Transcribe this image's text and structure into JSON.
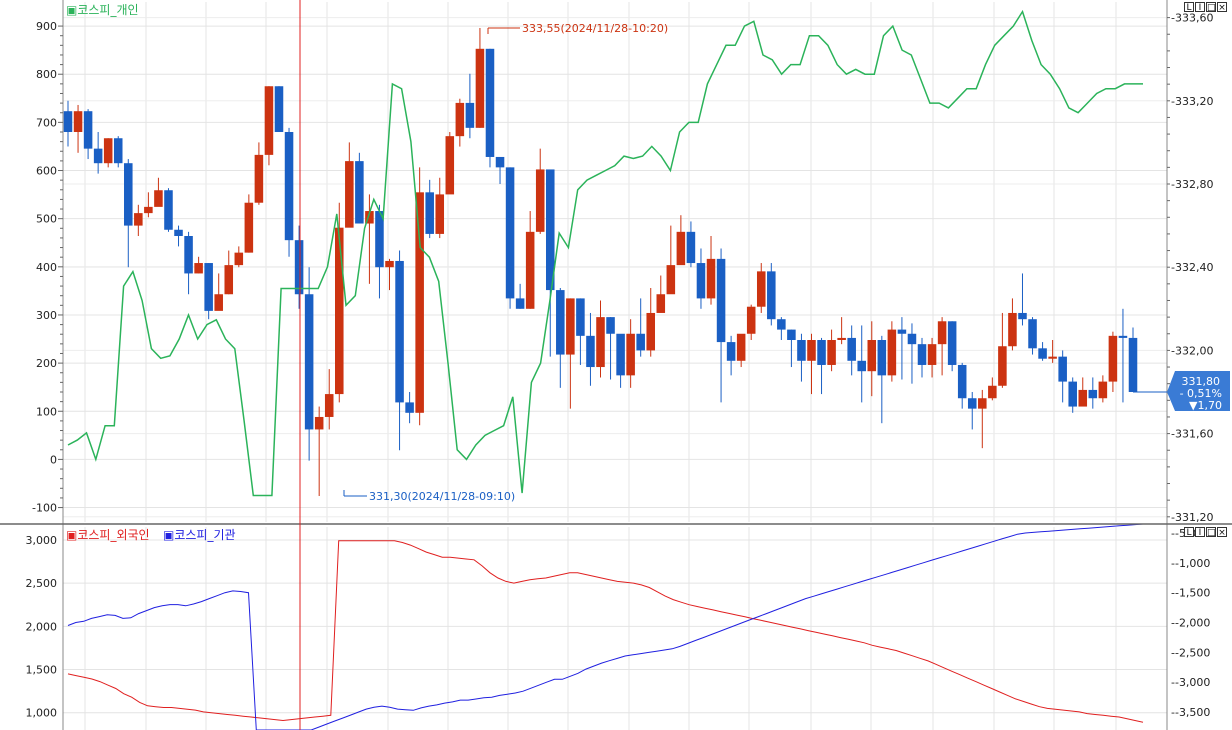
{
  "chart_data": [
    {
      "type": "candlestick",
      "legend": [
        "코스피_개인"
      ],
      "legend_color": "#2bb35a",
      "annotations": {
        "high": "333,55(2024/11/28-10:20)",
        "low": "331,30(2024/11/28-09:10)"
      },
      "price_tag": {
        "price": "331,80",
        "pct": "- 0,51%",
        "chg": "▼1,70"
      },
      "left_axis": {
        "min": -130,
        "max": 950,
        "ticks": [
          900,
          800,
          700,
          600,
          500,
          400,
          300,
          200,
          100,
          0,
          -100
        ],
        "tick_labels": [
          "900",
          "800",
          "700",
          "600",
          "500",
          "400",
          "300",
          "200",
          "100",
          "0",
          "-100"
        ]
      },
      "right_axis": {
        "min": 331.175,
        "max": 333.675,
        "ticks": [
          333.6,
          333.2,
          332.8,
          332.4,
          332.0,
          331.6,
          331.2
        ],
        "tick_labels": [
          "333,60",
          "333,20",
          "332,80",
          "332,40",
          "332,00",
          "331,60",
          "331,20"
        ]
      },
      "up_color": "#cc3311",
      "down_color": "#1a5fc4",
      "candles": [
        [
          333.15,
          333.05,
          333.2,
          332.98
        ],
        [
          333.05,
          333.15,
          333.18,
          332.95
        ],
        [
          333.15,
          332.97,
          333.16,
          332.92
        ],
        [
          332.97,
          332.9,
          333.05,
          332.85
        ],
        [
          332.9,
          333.02,
          333.02,
          332.88
        ],
        [
          333.02,
          332.9,
          333.03,
          332.88
        ],
        [
          332.9,
          332.6,
          332.92,
          332.4
        ],
        [
          332.6,
          332.66,
          332.7,
          332.55
        ],
        [
          332.66,
          332.69,
          332.76,
          332.64
        ],
        [
          332.69,
          332.77,
          332.83,
          332.7
        ],
        [
          332.77,
          332.58,
          332.78,
          332.57
        ],
        [
          332.58,
          332.55,
          332.6,
          332.5
        ],
        [
          332.55,
          332.37,
          332.57,
          332.27
        ],
        [
          332.37,
          332.42,
          332.45,
          332.37
        ],
        [
          332.42,
          332.19,
          332.42,
          332.15
        ],
        [
          332.19,
          332.27,
          332.37,
          332.26
        ],
        [
          332.27,
          332.41,
          332.48,
          332.27
        ],
        [
          332.41,
          332.47,
          332.5,
          332.4
        ],
        [
          332.47,
          332.71,
          332.75,
          332.47
        ],
        [
          332.71,
          332.94,
          333.0,
          332.7
        ],
        [
          332.94,
          333.27,
          333.27,
          332.89
        ],
        [
          333.27,
          333.05,
          333.27,
          333.05
        ],
        [
          333.05,
          332.53,
          333.07,
          332.45
        ],
        [
          332.53,
          332.27,
          332.6,
          332.2
        ],
        [
          332.27,
          331.62,
          332.4,
          331.47
        ],
        [
          331.62,
          331.68,
          331.73,
          331.3
        ],
        [
          331.68,
          331.79,
          331.91,
          331.62
        ],
        [
          331.79,
          332.59,
          332.71,
          331.75
        ],
        [
          332.59,
          332.91,
          333.0,
          332.6
        ],
        [
          332.91,
          332.61,
          332.95,
          332.61
        ],
        [
          332.61,
          332.67,
          332.75,
          332.32
        ],
        [
          332.67,
          332.4,
          332.7,
          332.25
        ],
        [
          332.4,
          332.43,
          332.44,
          332.29
        ],
        [
          332.43,
          331.75,
          332.48,
          331.52
        ],
        [
          331.75,
          331.7,
          331.8,
          331.65
        ],
        [
          331.7,
          332.76,
          332.88,
          331.64
        ],
        [
          332.76,
          332.56,
          332.82,
          332.54
        ],
        [
          332.56,
          332.75,
          332.83,
          332.54
        ],
        [
          332.75,
          333.03,
          333.05,
          332.76
        ],
        [
          333.03,
          333.19,
          333.21,
          332.98
        ],
        [
          333.19,
          333.07,
          333.33,
          333.02
        ],
        [
          333.07,
          333.45,
          333.55,
          333.07
        ],
        [
          333.45,
          332.93,
          333.45,
          332.88
        ],
        [
          332.93,
          332.88,
          332.92,
          332.8
        ],
        [
          332.88,
          332.25,
          332.88,
          332.2
        ],
        [
          332.25,
          332.2,
          332.32,
          332.2
        ],
        [
          332.2,
          332.57,
          332.67,
          332.2
        ],
        [
          332.57,
          332.87,
          332.97,
          332.56
        ],
        [
          332.87,
          332.29,
          332.87,
          331.97
        ],
        [
          332.29,
          331.98,
          332.3,
          331.82
        ],
        [
          331.98,
          332.25,
          332.25,
          331.72
        ],
        [
          332.25,
          332.07,
          332.25,
          331.93
        ],
        [
          332.07,
          331.92,
          332.18,
          331.83
        ],
        [
          331.92,
          332.16,
          332.24,
          331.87
        ],
        [
          332.16,
          332.08,
          332.16,
          331.86
        ],
        [
          332.08,
          331.88,
          332.03,
          331.82
        ],
        [
          331.88,
          332.08,
          332.15,
          331.82
        ],
        [
          332.08,
          332.0,
          332.25,
          331.97
        ],
        [
          332.0,
          332.18,
          332.3,
          331.97
        ],
        [
          332.18,
          332.27,
          332.36,
          332.2
        ],
        [
          332.27,
          332.41,
          332.6,
          332.36
        ],
        [
          332.41,
          332.57,
          332.65,
          332.45
        ],
        [
          332.57,
          332.42,
          332.62,
          332.4
        ],
        [
          332.42,
          332.25,
          332.49,
          332.2
        ],
        [
          332.25,
          332.44,
          332.55,
          332.22
        ],
        [
          332.44,
          332.04,
          332.49,
          331.75
        ],
        [
          332.04,
          331.95,
          332.07,
          331.88
        ],
        [
          331.95,
          332.08,
          332.07,
          331.92
        ],
        [
          332.08,
          332.21,
          332.22,
          332.05
        ],
        [
          332.21,
          332.38,
          332.42,
          332.18
        ],
        [
          332.38,
          332.15,
          332.42,
          332.12
        ],
        [
          332.15,
          332.1,
          332.16,
          332.05
        ],
        [
          332.1,
          332.05,
          332.1,
          331.92
        ],
        [
          332.05,
          331.95,
          332.08,
          331.85
        ],
        [
          331.95,
          332.05,
          332.08,
          331.79
        ],
        [
          332.05,
          331.93,
          332.06,
          331.79
        ],
        [
          331.93,
          332.05,
          332.1,
          331.9
        ],
        [
          332.05,
          332.06,
          332.16,
          332.03
        ],
        [
          332.06,
          331.95,
          332.12,
          331.88
        ],
        [
          331.95,
          331.9,
          332.12,
          331.75
        ],
        [
          331.9,
          332.05,
          332.14,
          331.78
        ],
        [
          332.05,
          331.88,
          332.07,
          331.65
        ],
        [
          331.88,
          332.1,
          332.14,
          331.85
        ],
        [
          332.1,
          332.08,
          332.16,
          331.86
        ],
        [
          332.08,
          332.03,
          332.13,
          331.84
        ],
        [
          332.03,
          331.93,
          332.06,
          331.87
        ],
        [
          331.93,
          332.03,
          332.06,
          331.87
        ],
        [
          332.03,
          332.14,
          332.16,
          331.88
        ],
        [
          332.14,
          331.93,
          332.14,
          331.9
        ],
        [
          331.93,
          331.77,
          331.94,
          331.72
        ],
        [
          331.77,
          331.72,
          331.8,
          331.62
        ],
        [
          331.72,
          331.77,
          331.81,
          331.53
        ],
        [
          331.77,
          331.83,
          331.87,
          331.76
        ],
        [
          331.83,
          332.02,
          332.18,
          331.82
        ],
        [
          332.02,
          332.18,
          332.25,
          332.0
        ],
        [
          332.18,
          332.15,
          332.37,
          332.12
        ],
        [
          332.15,
          332.01,
          332.16,
          331.98
        ],
        [
          332.01,
          331.96,
          332.04,
          331.95
        ],
        [
          331.96,
          331.97,
          332.05,
          331.94
        ],
        [
          331.97,
          331.85,
          332.0,
          331.75
        ],
        [
          331.85,
          331.73,
          331.87,
          331.7
        ],
        [
          331.73,
          331.81,
          331.87,
          331.74
        ],
        [
          331.81,
          331.77,
          331.87,
          331.72
        ],
        [
          331.77,
          331.85,
          331.88,
          331.75
        ],
        [
          331.85,
          332.07,
          332.09,
          331.8
        ],
        [
          332.07,
          332.06,
          332.2,
          331.75
        ],
        [
          332.06,
          331.8,
          332.11,
          331.8
        ]
      ],
      "series": [
        {
          "name": "코스피_개인",
          "values": [
            30,
            40,
            55,
            0,
            70,
            70,
            360,
            390,
            330,
            230,
            210,
            215,
            250,
            300,
            250,
            280,
            290,
            250,
            230,
            80,
            -75,
            -75,
            -75,
            355,
            355,
            355,
            355,
            355,
            400,
            510,
            320,
            340,
            480,
            540,
            500,
            780,
            770,
            660,
            440,
            420,
            370,
            200,
            20,
            0,
            30,
            50,
            60,
            70,
            130,
            -70,
            160,
            200,
            330,
            470,
            440,
            560,
            580,
            590,
            600,
            610,
            630,
            625,
            630,
            650,
            630,
            600,
            680,
            700,
            700,
            780,
            820,
            860,
            860,
            900,
            910,
            840,
            830,
            800,
            820,
            820,
            880,
            880,
            860,
            820,
            800,
            810,
            800,
            800,
            880,
            900,
            850,
            840,
            790,
            740,
            740,
            730,
            750,
            770,
            770,
            820,
            860,
            880,
            900,
            930,
            870,
            820,
            800,
            770,
            730,
            720,
            740,
            760,
            770,
            770,
            780,
            780,
            780
          ],
          "x_start": 1,
          "x_end": 106
        },
        {
          "name": "",
          "values": []
        }
      ]
    },
    {
      "type": "line",
      "legend": [
        "코스피_외국인",
        "코스피_기관"
      ],
      "legend_colors": [
        "#e02020",
        "#2020e0"
      ],
      "left_axis": {
        "min": 800,
        "max": 3150,
        "ticks": [
          3000,
          2500,
          2000,
          1500,
          1000
        ],
        "tick_labels": [
          "3,000",
          "2,500",
          "2,000",
          "1,500",
          "1,000"
        ]
      },
      "right_axis": {
        "min": -3800,
        "max": -400,
        "ticks": [
          -500,
          -1000,
          -1500,
          -2000,
          -2500,
          -3000,
          -3500
        ],
        "tick_labels": [
          "-500",
          "-1,000",
          "-1,500",
          "-2,000",
          "-2,500",
          "-3,000",
          "-3,500"
        ]
      },
      "series": [
        {
          "name": "코스피_외국인",
          "axis": "left",
          "values": [
            1450,
            1430,
            1410,
            1390,
            1360,
            1320,
            1280,
            1220,
            1180,
            1120,
            1080,
            1070,
            1060,
            1060,
            1050,
            1040,
            1030,
            1010,
            1000,
            990,
            980,
            970,
            960,
            950,
            940,
            930,
            920,
            910,
            920,
            930,
            940,
            950,
            960,
            970,
            2990,
            2990,
            2990,
            2990,
            2990,
            2990,
            2990,
            2990,
            2970,
            2940,
            2900,
            2860,
            2830,
            2800,
            2800,
            2790,
            2780,
            2770,
            2700,
            2620,
            2560,
            2520,
            2500,
            2520,
            2540,
            2550,
            2560,
            2580,
            2600,
            2620,
            2620,
            2600,
            2580,
            2560,
            2540,
            2520,
            2510,
            2500,
            2480,
            2450,
            2400,
            2350,
            2310,
            2280,
            2250,
            2230,
            2210,
            2190,
            2170,
            2150,
            2130,
            2110,
            2090,
            2070,
            2050,
            2030,
            2010,
            1990,
            1970,
            1950,
            1930,
            1910,
            1890,
            1870,
            1850,
            1830,
            1810,
            1780,
            1760,
            1740,
            1720,
            1690,
            1660,
            1630,
            1600,
            1560,
            1520,
            1480,
            1440,
            1400,
            1360,
            1320,
            1280,
            1240,
            1200,
            1160,
            1130,
            1100,
            1070,
            1050,
            1040,
            1030,
            1020,
            1010,
            990,
            980,
            970,
            960,
            950,
            930,
            910,
            890
          ]
        },
        {
          "name": "코스피_기관",
          "axis": "right",
          "values": [
            -2050,
            -2000,
            -1980,
            -1930,
            -1900,
            -1870,
            -1880,
            -1930,
            -1920,
            -1850,
            -1800,
            -1750,
            -1720,
            -1700,
            -1700,
            -1720,
            -1690,
            -1650,
            -1600,
            -1550,
            -1500,
            -1470,
            -1480,
            -1500,
            -3800,
            -3800,
            -3800,
            -3800,
            -3800,
            -3800,
            -3800,
            -3800,
            -3750,
            -3700,
            -3650,
            -3600,
            -3550,
            -3500,
            -3450,
            -3420,
            -3400,
            -3420,
            -3450,
            -3460,
            -3470,
            -3430,
            -3400,
            -3380,
            -3350,
            -3330,
            -3300,
            -3300,
            -3280,
            -3260,
            -3250,
            -3220,
            -3200,
            -3180,
            -3150,
            -3100,
            -3050,
            -3000,
            -2950,
            -2950,
            -2900,
            -2850,
            -2780,
            -2730,
            -2680,
            -2640,
            -2600,
            -2560,
            -2540,
            -2520,
            -2500,
            -2480,
            -2460,
            -2440,
            -2400,
            -2350,
            -2300,
            -2250,
            -2200,
            -2150,
            -2100,
            -2050,
            -2000,
            -1950,
            -1900,
            -1850,
            -1800,
            -1750,
            -1700,
            -1650,
            -1600,
            -1560,
            -1520,
            -1480,
            -1440,
            -1400,
            -1360,
            -1320,
            -1280,
            -1240,
            -1200,
            -1160,
            -1120,
            -1080,
            -1040,
            -1000,
            -960,
            -920,
            -880,
            -840,
            -800,
            -760,
            -720,
            -680,
            -640,
            -600,
            -560,
            -520,
            -500,
            -490,
            -480,
            -470,
            -460,
            -450,
            -440,
            -430,
            -420,
            -410,
            -400,
            -390,
            -380,
            -370,
            -360,
            -350
          ]
        }
      ]
    }
  ]
}
